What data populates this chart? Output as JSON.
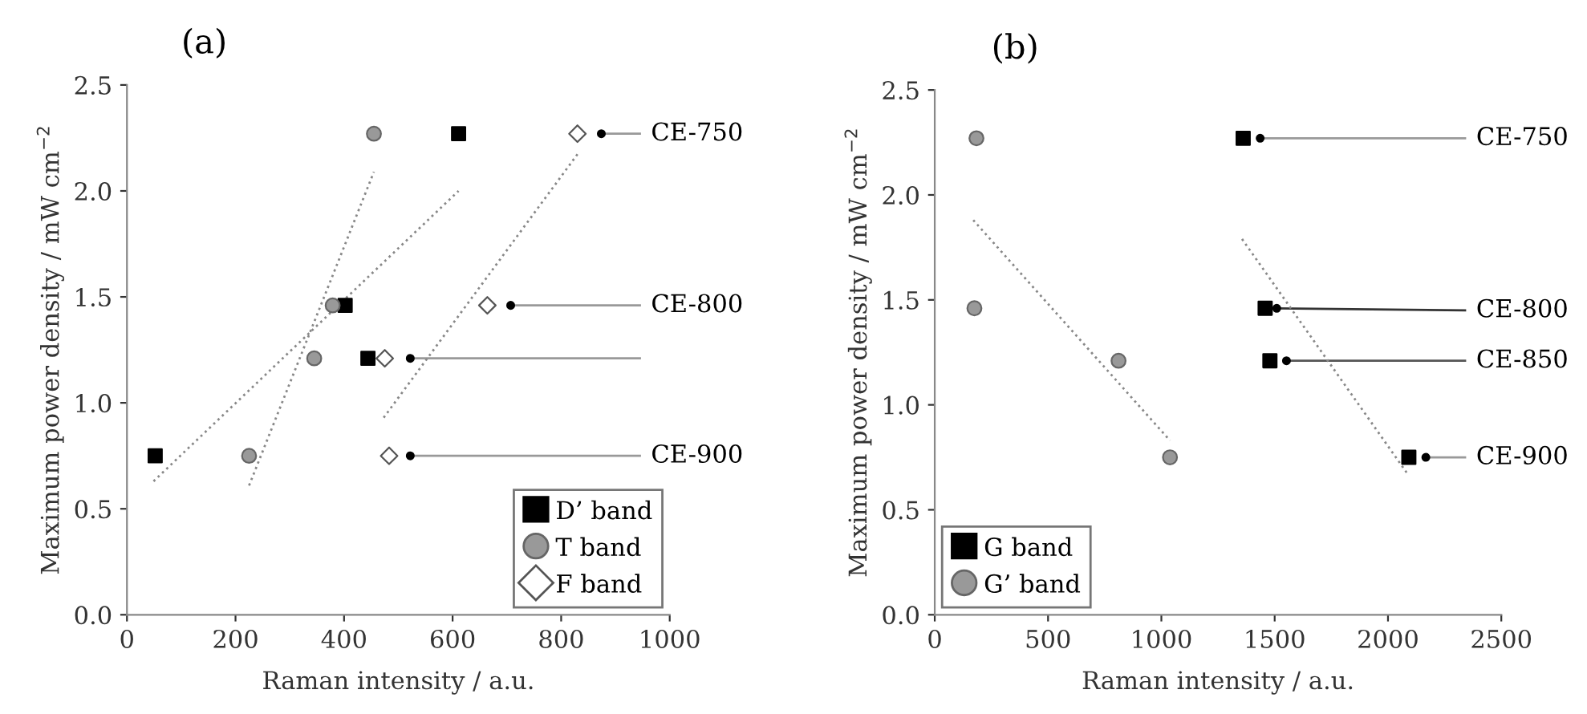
{
  "chart_data": [
    {
      "type": "scatter",
      "title": "(a)",
      "xlabel": "Raman intensity / a.u.",
      "ylabel": "Maximum power density / mW cm$^{−2}$",
      "xlim": [
        0,
        1000
      ],
      "xticks": [
        0,
        200,
        400,
        600,
        800,
        1000
      ],
      "ylim": [
        0,
        2.5
      ],
      "yticks": [
        {
          "value": 0,
          "label": "0.0"
        },
        {
          "value": 0.5,
          "label": "0.5"
        },
        {
          "value": 1,
          "label": "1.0"
        },
        {
          "value": 1.5,
          "label": "1.5"
        },
        {
          "value": 2,
          "label": "2.0"
        },
        {
          "value": 2.5,
          "label": "2.5"
        }
      ],
      "grid": false,
      "legend": "bottom right",
      "series": [
        {
          "name": "D’ band",
          "marker": "square",
          "color": "#000000",
          "x": [
            611,
            402,
            444,
            52
          ],
          "values": [
            2.27,
            1.46,
            1.21,
            0.75
          ]
        },
        {
          "name": "T band",
          "marker": "circle",
          "color": "#999999",
          "x": [
            455,
            379,
            345,
            225
          ],
          "values": [
            2.27,
            1.46,
            1.21,
            0.75
          ]
        },
        {
          "name": "F band",
          "marker": "diamond",
          "color": "#ffffff",
          "x": [
            830,
            664,
            475,
            483
          ],
          "values": [
            2.27,
            1.46,
            1.21,
            0.75
          ]
        },
        {
          "marker": "dot",
          "color": "#000000",
          "x": [
            874,
            707,
            522,
            522
          ],
          "values": [
            2.27,
            1.46,
            1.21,
            0.75
          ]
        },
        {
          "name": "CE-750",
          "type": "line",
          "color": "#999999",
          "line_style": "solid",
          "x": [
            874,
            945
          ],
          "values": [
            2.27,
            2.27
          ]
        },
        {
          "name": "CE-800",
          "type": "line",
          "color": "#999999",
          "line_style": "solid",
          "x": [
            707,
            945
          ],
          "values": [
            1.46,
            1.46
          ]
        },
        {
          "type": "line",
          "color": "#999999",
          "line_style": "solid",
          "x": [
            522,
            945
          ],
          "values": [
            1.21,
            1.21
          ]
        },
        {
          "name": "CE-900",
          "type": "line",
          "color": "#999999",
          "line_style": "solid",
          "x": [
            522,
            945
          ],
          "values": [
            0.75,
            0.75
          ]
        },
        {
          "type": "line",
          "color": "#888888",
          "line_style": "dotted",
          "x": [
            49,
            611
          ],
          "values": [
            0.63,
            2.0
          ]
        },
        {
          "type": "line",
          "color": "#888888",
          "line_style": "dotted",
          "x": [
            225,
            455
          ],
          "values": [
            0.61,
            2.09
          ]
        },
        {
          "type": "line",
          "color": "#888888",
          "line_style": "dotted",
          "x": [
            473,
            832
          ],
          "values": [
            0.93,
            2.18
          ]
        }
      ]
    },
    {
      "type": "scatter",
      "title": "(b)",
      "xlabel": "Raman intensity / a.u.",
      "ylabel": "Maximum power density / mW cm$^{−2}$",
      "xlim": [
        0,
        2500
      ],
      "xticks": [
        0,
        500,
        1000,
        1500,
        2000,
        2500
      ],
      "ylim": [
        0,
        2.5
      ],
      "yticks": [
        {
          "value": 0,
          "label": "0.0"
        },
        {
          "value": 0.5,
          "label": "0.5"
        },
        {
          "value": 1,
          "label": "1.0"
        },
        {
          "value": 1.5,
          "label": "1.5"
        },
        {
          "value": 2,
          "label": "2.0"
        },
        {
          "value": 2.5,
          "label": "2.5"
        }
      ],
      "grid": false,
      "legend": "bottom left",
      "series": [
        {
          "name": "G band",
          "marker": "square",
          "color": "#000000",
          "x": [
            1361,
            1458,
            1479,
            2092
          ],
          "values": [
            2.27,
            1.46,
            1.21,
            0.75
          ]
        },
        {
          "name": "G’ band",
          "marker": "circle",
          "color": "#999999",
          "x": [
            184,
            175,
            811,
            1038
          ],
          "values": [
            2.27,
            1.46,
            1.21,
            0.75
          ]
        },
        {
          "marker": "dot",
          "color": "#000000",
          "x": [
            1436,
            1509,
            1552,
            2167
          ],
          "values": [
            2.27,
            1.46,
            1.21,
            0.75
          ]
        },
        {
          "name": "CE-750",
          "type": "line",
          "color": "#999999",
          "line_style": "solid",
          "x": [
            1436,
            2340
          ],
          "values": [
            2.27,
            2.27
          ]
        },
        {
          "name": "CE-800",
          "type": "line",
          "color": "#333333",
          "line_style": "solid",
          "x": [
            1509,
            2340
          ],
          "values": [
            1.46,
            1.45
          ]
        },
        {
          "name": "CE-850",
          "type": "line",
          "color": "#555555",
          "line_style": "solid",
          "x": [
            1552,
            2340
          ],
          "values": [
            1.21,
            1.21
          ]
        },
        {
          "name": "CE-900",
          "type": "line",
          "color": "#999999",
          "line_style": "solid",
          "x": [
            2167,
            2340
          ],
          "values": [
            0.75,
            0.75
          ]
        },
        {
          "type": "line",
          "color": "#888888",
          "line_style": "dotted",
          "x": [
            170,
            1038
          ],
          "values": [
            1.88,
            0.83
          ]
        },
        {
          "type": "line",
          "color": "#888888",
          "line_style": "dotted",
          "x": [
            1356,
            2087
          ],
          "values": [
            1.79,
            0.67
          ]
        }
      ]
    }
  ]
}
